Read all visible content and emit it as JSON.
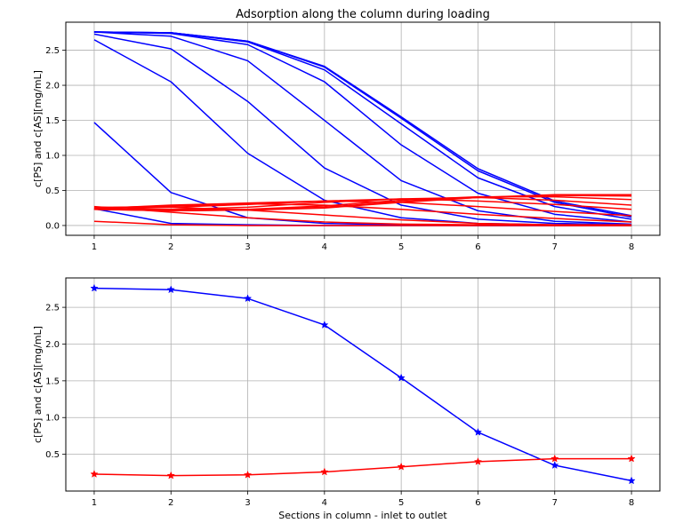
{
  "chart_data": [
    {
      "type": "line",
      "title": "Adsorption along the column during loading",
      "xlabel": "",
      "ylabel": "c[PS] and c[AS][mg/mL]",
      "xlim": [
        0.63,
        8.37
      ],
      "ylim": [
        -0.14,
        2.9
      ],
      "xticks": [
        1,
        2,
        3,
        4,
        5,
        6,
        7,
        8
      ],
      "yticks": [
        0.0,
        0.5,
        1.0,
        1.5,
        2.0,
        2.5
      ],
      "ytick_labels": [
        "0.0",
        "0.5",
        "1.0",
        "1.5",
        "2.0",
        "2.5"
      ],
      "grid": true,
      "x": [
        1,
        2,
        3,
        4,
        5,
        6,
        7,
        8
      ],
      "series": [
        {
          "color": "#0000ff",
          "values": [
            0.24,
            0.03,
            0.01,
            0.0,
            0.0,
            0.0,
            0.0,
            0.0
          ]
        },
        {
          "color": "#0000ff",
          "values": [
            1.47,
            0.47,
            0.11,
            0.03,
            0.01,
            0.0,
            0.0,
            0.0
          ]
        },
        {
          "color": "#0000ff",
          "values": [
            2.65,
            2.05,
            1.03,
            0.36,
            0.11,
            0.03,
            0.01,
            0.0
          ]
        },
        {
          "color": "#0000ff",
          "values": [
            2.73,
            2.52,
            1.77,
            0.82,
            0.29,
            0.09,
            0.03,
            0.01
          ]
        },
        {
          "color": "#0000ff",
          "values": [
            2.76,
            2.7,
            2.35,
            1.5,
            0.64,
            0.21,
            0.06,
            0.02
          ]
        },
        {
          "color": "#0000ff",
          "values": [
            2.76,
            2.74,
            2.58,
            2.05,
            1.15,
            0.46,
            0.16,
            0.05
          ]
        },
        {
          "color": "#0000ff",
          "values": [
            2.76,
            2.75,
            2.62,
            2.22,
            1.45,
            0.68,
            0.27,
            0.09
          ]
        },
        {
          "color": "#0000ff",
          "values": [
            2.76,
            2.75,
            2.63,
            2.26,
            1.53,
            0.78,
            0.33,
            0.12
          ]
        },
        {
          "color": "#0000ff",
          "values": [
            2.76,
            2.75,
            2.63,
            2.27,
            1.55,
            0.81,
            0.35,
            0.14
          ]
        },
        {
          "color": "#ff0000",
          "values": [
            0.06,
            0.01,
            0.0,
            0.0,
            0.0,
            0.0,
            0.0,
            0.0
          ]
        },
        {
          "color": "#ff0000",
          "values": [
            0.27,
            0.19,
            0.11,
            0.05,
            0.02,
            0.01,
            0.0,
            0.0
          ]
        },
        {
          "color": "#ff0000",
          "values": [
            0.26,
            0.26,
            0.22,
            0.15,
            0.08,
            0.03,
            0.01,
            0.01
          ]
        },
        {
          "color": "#ff0000",
          "values": [
            0.25,
            0.28,
            0.31,
            0.29,
            0.23,
            0.16,
            0.1,
            0.05
          ]
        },
        {
          "color": "#ff0000",
          "values": [
            0.24,
            0.29,
            0.32,
            0.35,
            0.33,
            0.27,
            0.2,
            0.14
          ]
        },
        {
          "color": "#ff0000",
          "values": [
            0.23,
            0.26,
            0.3,
            0.35,
            0.38,
            0.35,
            0.3,
            0.23
          ]
        },
        {
          "color": "#ff0000",
          "values": [
            0.23,
            0.23,
            0.26,
            0.33,
            0.38,
            0.4,
            0.36,
            0.29
          ]
        },
        {
          "color": "#ff0000",
          "values": [
            0.23,
            0.22,
            0.23,
            0.28,
            0.36,
            0.41,
            0.41,
            0.37
          ]
        },
        {
          "color": "#ff0000",
          "values": [
            0.23,
            0.21,
            0.22,
            0.26,
            0.34,
            0.4,
            0.43,
            0.42
          ]
        },
        {
          "color": "#ff0000",
          "values": [
            0.23,
            0.21,
            0.22,
            0.25,
            0.33,
            0.4,
            0.44,
            0.44
          ]
        }
      ]
    },
    {
      "type": "line",
      "title": "",
      "xlabel": "Sections in column - inlet to outlet",
      "ylabel": "c[PS] and c[AS][mg/mL]",
      "xlim": [
        0.63,
        8.37
      ],
      "ylim": [
        0.0,
        2.9
      ],
      "xticks": [
        1,
        2,
        3,
        4,
        5,
        6,
        7,
        8
      ],
      "yticks": [
        0.5,
        1.0,
        1.5,
        2.0,
        2.5
      ],
      "ytick_labels": [
        "0.5",
        "1.0",
        "1.5",
        "2.0",
        "2.5"
      ],
      "grid": true,
      "marker": "star",
      "x": [
        1,
        2,
        3,
        4,
        5,
        6,
        7,
        8
      ],
      "series": [
        {
          "color": "#0000ff",
          "values": [
            2.76,
            2.74,
            2.62,
            2.26,
            1.54,
            0.8,
            0.35,
            0.14
          ]
        },
        {
          "color": "#ff0000",
          "values": [
            0.23,
            0.21,
            0.22,
            0.26,
            0.33,
            0.4,
            0.44,
            0.44
          ]
        }
      ]
    }
  ]
}
